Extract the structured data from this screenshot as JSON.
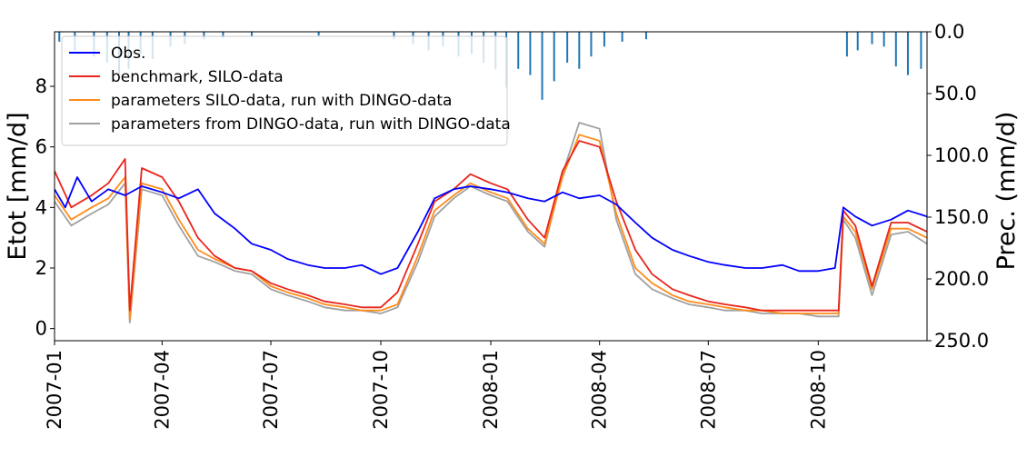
{
  "chart_data": {
    "type": "line",
    "title": "",
    "xlabel": "",
    "ylabel": "Etot [mm/d]",
    "y2label": "Prec. (mm/d)",
    "ylim": [
      -0.4,
      9.8
    ],
    "y2lim": [
      250,
      0
    ],
    "xlim": [
      "2007-01-01",
      "2008-12-31"
    ],
    "x_ticks": [
      "2007-01",
      "2007-04",
      "2007-07",
      "2007-10",
      "2008-01",
      "2008-04",
      "2008-07",
      "2008-10"
    ],
    "y_ticks": [
      "0",
      "2",
      "4",
      "6",
      "8"
    ],
    "y2_ticks": [
      "0.0",
      "50.0",
      "100.0",
      "150.0",
      "200.0",
      "250.0"
    ],
    "grid": false,
    "legend": {
      "placement": "top-left"
    },
    "series": [
      {
        "name": "Obs.",
        "color": "#0000ff",
        "points": [
          [
            "2007-01-01",
            4.6
          ],
          [
            "2007-01-10",
            4.0
          ],
          [
            "2007-01-20",
            5.0
          ],
          [
            "2007-02-01",
            4.2
          ],
          [
            "2007-02-15",
            4.6
          ],
          [
            "2007-03-01",
            4.4
          ],
          [
            "2007-03-15",
            4.7
          ],
          [
            "2007-04-01",
            4.5
          ],
          [
            "2007-04-15",
            4.3
          ],
          [
            "2007-05-01",
            4.6
          ],
          [
            "2007-05-15",
            3.8
          ],
          [
            "2007-06-01",
            3.3
          ],
          [
            "2007-06-15",
            2.8
          ],
          [
            "2007-07-01",
            2.6
          ],
          [
            "2007-07-15",
            2.3
          ],
          [
            "2007-08-01",
            2.1
          ],
          [
            "2007-08-15",
            2.0
          ],
          [
            "2007-09-01",
            2.0
          ],
          [
            "2007-09-15",
            2.1
          ],
          [
            "2007-10-01",
            1.8
          ],
          [
            "2007-10-15",
            2.0
          ],
          [
            "2007-11-01",
            3.2
          ],
          [
            "2007-11-15",
            4.3
          ],
          [
            "2007-12-01",
            4.6
          ],
          [
            "2007-12-15",
            4.7
          ],
          [
            "2008-01-01",
            4.6
          ],
          [
            "2008-01-15",
            4.5
          ],
          [
            "2008-02-01",
            4.3
          ],
          [
            "2008-02-15",
            4.2
          ],
          [
            "2008-03-01",
            4.5
          ],
          [
            "2008-03-15",
            4.3
          ],
          [
            "2008-04-01",
            4.4
          ],
          [
            "2008-04-15",
            4.1
          ],
          [
            "2008-05-01",
            3.5
          ],
          [
            "2008-05-15",
            3.0
          ],
          [
            "2008-06-01",
            2.6
          ],
          [
            "2008-06-15",
            2.4
          ],
          [
            "2008-07-01",
            2.2
          ],
          [
            "2008-07-15",
            2.1
          ],
          [
            "2008-08-01",
            2.0
          ],
          [
            "2008-08-15",
            2.0
          ],
          [
            "2008-09-01",
            2.1
          ],
          [
            "2008-09-15",
            1.9
          ],
          [
            "2008-10-01",
            1.9
          ],
          [
            "2008-10-15",
            2.0
          ],
          [
            "2008-10-22",
            4.0
          ],
          [
            "2008-11-01",
            3.7
          ],
          [
            "2008-11-15",
            3.4
          ],
          [
            "2008-12-01",
            3.6
          ],
          [
            "2008-12-15",
            3.9
          ],
          [
            "2008-12-31",
            3.7
          ]
        ]
      },
      {
        "name": "benchmark, SILO-data",
        "color": "#e8251b",
        "points": [
          [
            "2007-01-01",
            5.2
          ],
          [
            "2007-01-15",
            4.0
          ],
          [
            "2007-02-01",
            4.4
          ],
          [
            "2007-02-15",
            4.8
          ],
          [
            "2007-03-01",
            5.6
          ],
          [
            "2007-03-05",
            0.6
          ],
          [
            "2007-03-15",
            5.3
          ],
          [
            "2007-04-01",
            5.0
          ],
          [
            "2007-04-15",
            4.2
          ],
          [
            "2007-05-01",
            3.0
          ],
          [
            "2007-05-15",
            2.4
          ],
          [
            "2007-06-01",
            2.0
          ],
          [
            "2007-06-15",
            1.9
          ],
          [
            "2007-07-01",
            1.5
          ],
          [
            "2007-07-15",
            1.3
          ],
          [
            "2007-08-01",
            1.1
          ],
          [
            "2007-08-15",
            0.9
          ],
          [
            "2007-09-01",
            0.8
          ],
          [
            "2007-09-15",
            0.7
          ],
          [
            "2007-10-01",
            0.7
          ],
          [
            "2007-10-15",
            1.2
          ],
          [
            "2007-11-01",
            2.8
          ],
          [
            "2007-11-15",
            4.2
          ],
          [
            "2007-12-01",
            4.6
          ],
          [
            "2007-12-15",
            5.1
          ],
          [
            "2008-01-01",
            4.8
          ],
          [
            "2008-01-15",
            4.6
          ],
          [
            "2008-02-01",
            3.6
          ],
          [
            "2008-02-15",
            3.0
          ],
          [
            "2008-03-01",
            5.2
          ],
          [
            "2008-03-15",
            6.2
          ],
          [
            "2008-04-01",
            6.0
          ],
          [
            "2008-04-15",
            4.2
          ],
          [
            "2008-05-01",
            2.6
          ],
          [
            "2008-05-15",
            1.8
          ],
          [
            "2008-06-01",
            1.3
          ],
          [
            "2008-06-15",
            1.1
          ],
          [
            "2008-07-01",
            0.9
          ],
          [
            "2008-07-15",
            0.8
          ],
          [
            "2008-08-01",
            0.7
          ],
          [
            "2008-08-15",
            0.6
          ],
          [
            "2008-09-01",
            0.6
          ],
          [
            "2008-09-15",
            0.6
          ],
          [
            "2008-10-01",
            0.6
          ],
          [
            "2008-10-18",
            0.6
          ],
          [
            "2008-10-22",
            3.9
          ],
          [
            "2008-11-01",
            3.4
          ],
          [
            "2008-11-15",
            1.4
          ],
          [
            "2008-12-01",
            3.5
          ],
          [
            "2008-12-15",
            3.5
          ],
          [
            "2008-12-31",
            3.2
          ]
        ]
      },
      {
        "name": "parameters SILO-data, run with DINGO-data",
        "color": "#ff8c1a",
        "points": [
          [
            "2007-01-01",
            4.4
          ],
          [
            "2007-01-15",
            3.6
          ],
          [
            "2007-02-01",
            4.0
          ],
          [
            "2007-02-15",
            4.3
          ],
          [
            "2007-03-01",
            5.0
          ],
          [
            "2007-03-05",
            0.3
          ],
          [
            "2007-03-15",
            4.8
          ],
          [
            "2007-04-01",
            4.6
          ],
          [
            "2007-04-15",
            3.6
          ],
          [
            "2007-05-01",
            2.6
          ],
          [
            "2007-05-15",
            2.3
          ],
          [
            "2007-06-01",
            2.0
          ],
          [
            "2007-06-15",
            1.9
          ],
          [
            "2007-07-01",
            1.4
          ],
          [
            "2007-07-15",
            1.2
          ],
          [
            "2007-08-01",
            1.0
          ],
          [
            "2007-08-15",
            0.8
          ],
          [
            "2007-09-01",
            0.7
          ],
          [
            "2007-09-15",
            0.6
          ],
          [
            "2007-10-01",
            0.6
          ],
          [
            "2007-10-15",
            0.8
          ],
          [
            "2007-11-01",
            2.4
          ],
          [
            "2007-11-15",
            3.9
          ],
          [
            "2007-12-01",
            4.4
          ],
          [
            "2007-12-15",
            4.8
          ],
          [
            "2008-01-01",
            4.5
          ],
          [
            "2008-01-15",
            4.3
          ],
          [
            "2008-02-01",
            3.3
          ],
          [
            "2008-02-15",
            2.8
          ],
          [
            "2008-03-01",
            5.0
          ],
          [
            "2008-03-15",
            6.4
          ],
          [
            "2008-04-01",
            6.2
          ],
          [
            "2008-04-15",
            3.8
          ],
          [
            "2008-05-01",
            2.0
          ],
          [
            "2008-05-15",
            1.5
          ],
          [
            "2008-06-01",
            1.1
          ],
          [
            "2008-06-15",
            0.9
          ],
          [
            "2008-07-01",
            0.8
          ],
          [
            "2008-07-15",
            0.7
          ],
          [
            "2008-08-01",
            0.6
          ],
          [
            "2008-08-15",
            0.6
          ],
          [
            "2008-09-01",
            0.5
          ],
          [
            "2008-09-15",
            0.5
          ],
          [
            "2008-10-01",
            0.5
          ],
          [
            "2008-10-18",
            0.5
          ],
          [
            "2008-10-22",
            3.7
          ],
          [
            "2008-11-01",
            3.2
          ],
          [
            "2008-11-15",
            1.3
          ],
          [
            "2008-12-01",
            3.3
          ],
          [
            "2008-12-15",
            3.3
          ],
          [
            "2008-12-31",
            3.0
          ]
        ]
      },
      {
        "name": "parameters from DINGO-data, run with DINGO-data",
        "color": "#a0a0a0",
        "points": [
          [
            "2007-01-01",
            4.2
          ],
          [
            "2007-01-15",
            3.4
          ],
          [
            "2007-02-01",
            3.8
          ],
          [
            "2007-02-15",
            4.1
          ],
          [
            "2007-03-01",
            4.8
          ],
          [
            "2007-03-05",
            0.2
          ],
          [
            "2007-03-15",
            4.6
          ],
          [
            "2007-04-01",
            4.4
          ],
          [
            "2007-04-15",
            3.4
          ],
          [
            "2007-05-01",
            2.4
          ],
          [
            "2007-05-15",
            2.2
          ],
          [
            "2007-06-01",
            1.9
          ],
          [
            "2007-06-15",
            1.8
          ],
          [
            "2007-07-01",
            1.3
          ],
          [
            "2007-07-15",
            1.1
          ],
          [
            "2007-08-01",
            0.9
          ],
          [
            "2007-08-15",
            0.7
          ],
          [
            "2007-09-01",
            0.6
          ],
          [
            "2007-09-15",
            0.6
          ],
          [
            "2007-10-01",
            0.5
          ],
          [
            "2007-10-15",
            0.7
          ],
          [
            "2007-11-01",
            2.2
          ],
          [
            "2007-11-15",
            3.7
          ],
          [
            "2007-12-01",
            4.3
          ],
          [
            "2007-12-15",
            4.7
          ],
          [
            "2008-01-01",
            4.4
          ],
          [
            "2008-01-15",
            4.2
          ],
          [
            "2008-02-01",
            3.2
          ],
          [
            "2008-02-15",
            2.7
          ],
          [
            "2008-03-01",
            5.1
          ],
          [
            "2008-03-15",
            6.8
          ],
          [
            "2008-04-01",
            6.6
          ],
          [
            "2008-04-15",
            3.6
          ],
          [
            "2008-05-01",
            1.8
          ],
          [
            "2008-05-15",
            1.3
          ],
          [
            "2008-06-01",
            1.0
          ],
          [
            "2008-06-15",
            0.8
          ],
          [
            "2008-07-01",
            0.7
          ],
          [
            "2008-07-15",
            0.6
          ],
          [
            "2008-08-01",
            0.6
          ],
          [
            "2008-08-15",
            0.5
          ],
          [
            "2008-09-01",
            0.5
          ],
          [
            "2008-09-15",
            0.5
          ],
          [
            "2008-10-01",
            0.4
          ],
          [
            "2008-10-18",
            0.4
          ],
          [
            "2008-10-22",
            3.6
          ],
          [
            "2008-11-01",
            3.0
          ],
          [
            "2008-11-15",
            1.1
          ],
          [
            "2008-12-01",
            3.1
          ],
          [
            "2008-12-15",
            3.2
          ],
          [
            "2008-12-31",
            2.8
          ]
        ]
      },
      {
        "name": "",
        "kind": "bar",
        "axis": "right",
        "color": "#1f77b4",
        "light_color": "#c6dbef",
        "points": [
          [
            "2007-01-05",
            8
          ],
          [
            "2007-01-18",
            15
          ],
          [
            "2007-02-03",
            20
          ],
          [
            "2007-02-14",
            25
          ],
          [
            "2007-02-24",
            35
          ],
          [
            "2007-03-04",
            30
          ],
          [
            "2007-03-14",
            18
          ],
          [
            "2007-03-24",
            22
          ],
          [
            "2007-04-08",
            12
          ],
          [
            "2007-04-20",
            10
          ],
          [
            "2007-05-06",
            6
          ],
          [
            "2007-05-22",
            5
          ],
          [
            "2007-06-15",
            4
          ],
          [
            "2007-08-10",
            3
          ],
          [
            "2007-10-12",
            6
          ],
          [
            "2007-10-28",
            10
          ],
          [
            "2007-11-10",
            15
          ],
          [
            "2007-11-22",
            12
          ],
          [
            "2007-12-05",
            20
          ],
          [
            "2007-12-16",
            18
          ],
          [
            "2007-12-26",
            25
          ],
          [
            "2008-01-05",
            30
          ],
          [
            "2008-01-14",
            45
          ],
          [
            "2008-01-24",
            30
          ],
          [
            "2008-02-03",
            35
          ],
          [
            "2008-02-13",
            55
          ],
          [
            "2008-02-23",
            40
          ],
          [
            "2008-03-05",
            25
          ],
          [
            "2008-03-15",
            30
          ],
          [
            "2008-03-25",
            20
          ],
          [
            "2008-04-05",
            12
          ],
          [
            "2008-04-20",
            8
          ],
          [
            "2008-05-10",
            6
          ],
          [
            "2008-10-25",
            20
          ],
          [
            "2008-11-03",
            15
          ],
          [
            "2008-11-15",
            10
          ],
          [
            "2008-11-25",
            12
          ],
          [
            "2008-12-05",
            28
          ],
          [
            "2008-12-15",
            35
          ],
          [
            "2008-12-26",
            30
          ]
        ]
      }
    ]
  }
}
